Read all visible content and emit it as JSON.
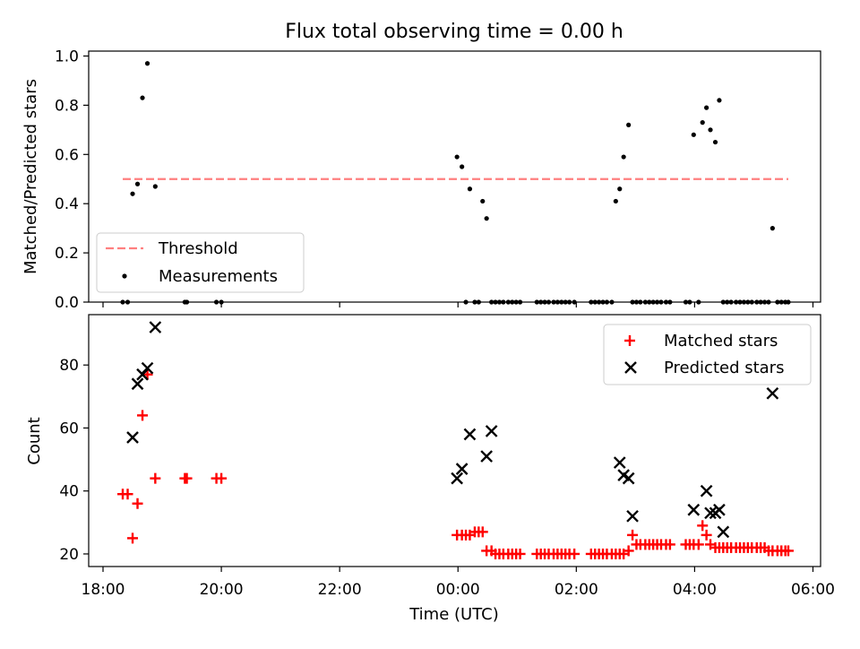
{
  "chart_data": [
    {
      "type": "scatter",
      "title": "Flux total observing time = 0.00 h",
      "xlabel": "",
      "ylabel": "Matched/Predicted stars",
      "ylim": [
        0,
        1.02
      ],
      "yticks": [
        0.0,
        0.2,
        0.4,
        0.6,
        0.8,
        1.0
      ],
      "ytick_labels": [
        "0.0",
        "0.2",
        "0.4",
        "0.6",
        "0.8",
        "1.0"
      ],
      "legend_placement": "lower-left",
      "series": [
        {
          "name": "Threshold",
          "kind": "dashed-line",
          "color": "#ff7f7f",
          "x": [
            "18:20",
            "05:35"
          ],
          "y": [
            0.5,
            0.5
          ]
        },
        {
          "name": "Measurements",
          "kind": "dot",
          "color": "#000000",
          "x": [
            "18:20",
            "18:25",
            "18:30",
            "18:35",
            "18:40",
            "18:45",
            "18:53",
            "19:23",
            "19:25",
            "19:55",
            "20:00",
            "23:59",
            "00:04",
            "00:08",
            "00:12",
            "00:17",
            "00:21",
            "00:25",
            "00:29",
            "00:34",
            "00:38",
            "00:42",
            "00:46",
            "00:51",
            "00:55",
            "00:59",
            "01:03",
            "01:20",
            "01:24",
            "01:28",
            "01:32",
            "01:37",
            "01:41",
            "01:45",
            "01:49",
            "01:53",
            "01:58",
            "02:15",
            "02:19",
            "02:23",
            "02:27",
            "02:31",
            "02:36",
            "02:40",
            "02:44",
            "02:48",
            "02:53",
            "02:57",
            "03:01",
            "03:05",
            "03:10",
            "03:14",
            "03:18",
            "03:22",
            "03:26",
            "03:31",
            "03:35",
            "03:51",
            "03:55",
            "03:59",
            "04:04",
            "04:08",
            "04:12",
            "04:16",
            "04:21",
            "04:25",
            "04:29",
            "04:33",
            "04:37",
            "04:42",
            "04:46",
            "04:50",
            "04:54",
            "04:58",
            "05:03",
            "05:07",
            "05:11",
            "05:15",
            "05:19",
            "05:24",
            "05:28",
            "05:32",
            "05:35"
          ],
          "y": [
            0,
            0,
            0.44,
            0.48,
            0.83,
            0.97,
            0.47,
            0,
            0,
            0,
            0,
            0.59,
            0.55,
            0,
            0.46,
            0,
            0,
            0.41,
            0.34,
            0,
            0,
            0,
            0,
            0,
            0,
            0,
            0,
            0,
            0,
            0,
            0,
            0,
            0,
            0,
            0,
            0,
            0,
            0,
            0,
            0,
            0,
            0,
            0,
            0.41,
            0.46,
            0.59,
            0.72,
            0,
            0,
            0,
            0,
            0,
            0,
            0,
            0,
            0,
            0,
            0,
            0,
            0.68,
            0,
            0.73,
            0.79,
            0.7,
            0.65,
            0.82,
            0,
            0,
            0,
            0,
            0,
            0,
            0,
            0,
            0,
            0,
            0,
            0,
            0.3,
            0,
            0,
            0,
            0
          ]
        }
      ]
    },
    {
      "type": "scatter",
      "title": "",
      "xlabel": "Time (UTC)",
      "ylabel": "Count",
      "ylim": [
        16,
        96
      ],
      "yticks": [
        20,
        40,
        60,
        80
      ],
      "ytick_labels": [
        "20",
        "40",
        "60",
        "80"
      ],
      "xtick_labels": [
        "18:00",
        "20:00",
        "22:00",
        "00:00",
        "02:00",
        "04:00",
        "06:00"
      ],
      "legend_placement": "top-right",
      "series": [
        {
          "name": "Matched stars",
          "kind": "plus",
          "color": "#ff0000",
          "x": [
            "18:20",
            "18:25",
            "18:30",
            "18:35",
            "18:40",
            "18:45",
            "18:53",
            "19:23",
            "19:25",
            "19:55",
            "20:00",
            "23:59",
            "00:04",
            "00:08",
            "00:12",
            "00:17",
            "00:21",
            "00:25",
            "00:29",
            "00:34",
            "00:38",
            "00:42",
            "00:46",
            "00:51",
            "00:55",
            "00:59",
            "01:03",
            "01:20",
            "01:24",
            "01:28",
            "01:32",
            "01:37",
            "01:41",
            "01:45",
            "01:49",
            "01:53",
            "01:58",
            "02:15",
            "02:19",
            "02:23",
            "02:27",
            "02:31",
            "02:36",
            "02:40",
            "02:44",
            "02:48",
            "02:53",
            "02:57",
            "03:01",
            "03:05",
            "03:10",
            "03:14",
            "03:18",
            "03:22",
            "03:26",
            "03:31",
            "03:35",
            "03:51",
            "03:55",
            "03:59",
            "04:04",
            "04:08",
            "04:12",
            "04:16",
            "04:21",
            "04:25",
            "04:29",
            "04:33",
            "04:37",
            "04:42",
            "04:46",
            "04:50",
            "04:54",
            "04:58",
            "05:03",
            "05:07",
            "05:11",
            "05:15",
            "05:19",
            "05:24",
            "05:28",
            "05:32",
            "05:35"
          ],
          "y": [
            39,
            39,
            25,
            36,
            64,
            77,
            44,
            44,
            44,
            44,
            44,
            26,
            26,
            26,
            26,
            27,
            27,
            27,
            21,
            21,
            20,
            20,
            20,
            20,
            20,
            20,
            20,
            20,
            20,
            20,
            20,
            20,
            20,
            20,
            20,
            20,
            20,
            20,
            20,
            20,
            20,
            20,
            20,
            20,
            20,
            20,
            21,
            26,
            23,
            23,
            23,
            23,
            23,
            23,
            23,
            23,
            23,
            23,
            23,
            23,
            23,
            29,
            26,
            23,
            22,
            22,
            22,
            22,
            22,
            22,
            22,
            22,
            22,
            22,
            22,
            22,
            22,
            21,
            21,
            21,
            21,
            21,
            21
          ]
        },
        {
          "name": "Predicted stars",
          "kind": "x",
          "color": "#000000",
          "x": [
            "18:30",
            "18:35",
            "18:40",
            "18:45",
            "18:53",
            "23:59",
            "00:04",
            "00:12",
            "00:29",
            "00:34",
            "02:44",
            "02:48",
            "02:53",
            "02:57",
            "03:59",
            "04:12",
            "04:16",
            "04:21",
            "04:25",
            "04:29",
            "05:19"
          ],
          "y": [
            57,
            74,
            77,
            79,
            92,
            44,
            47,
            58,
            51,
            59,
            49,
            45,
            44,
            32,
            34,
            40,
            33,
            33,
            34,
            27,
            71
          ]
        }
      ]
    }
  ]
}
